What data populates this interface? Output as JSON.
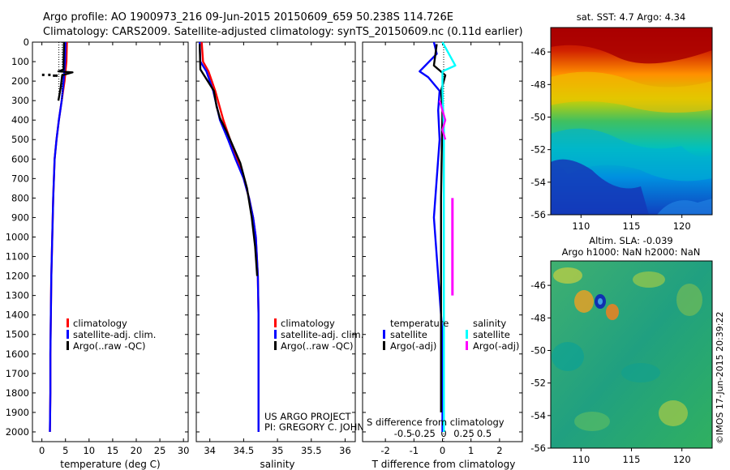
{
  "header": {
    "title_line1": "Argo profile: AO 1900973_216 09-Jun-2015 20150609_659 50.238S 114.726E",
    "title_line2": "Climatology: CARS2009. Satellite-adjusted climatology: synTS_20150609.nc (0.11d earlier)"
  },
  "colors": {
    "climatology": "#ff0000",
    "satellite_adj": "#0000ff",
    "argo": "#000000",
    "salinity_satellite": "#00ffff",
    "salinity_argo": "#ff00ff"
  },
  "credits": {
    "project": "US ARGO PROJECT",
    "pi": "PI: GREGORY C. JOHNSON",
    "imos_stamp": "©IMOS 17-Jun-2015 20:39:22"
  },
  "chart_data": [
    {
      "id": "temperature_profile",
      "type": "line",
      "xlabel": "temperature (deg C)",
      "ylabel": "",
      "xlim": [
        -2,
        31
      ],
      "ylim": [
        2050,
        0
      ],
      "y_ticks": [
        0,
        100,
        200,
        300,
        400,
        500,
        600,
        700,
        800,
        900,
        1000,
        1100,
        1200,
        1300,
        1400,
        1500,
        1600,
        1700,
        1800,
        1900,
        2000
      ],
      "x_ticks": [
        0,
        5,
        10,
        15,
        20,
        25,
        30
      ],
      "legend": [
        "climatology",
        "satellite-adj. clim.",
        "Argo(..raw -QC)"
      ],
      "series": [
        {
          "name": "climatology",
          "color": "#ff0000",
          "x": [
            5.3,
            5.2,
            4.8,
            4.2,
            3.6,
            3.1,
            2.7,
            2.4,
            2.2,
            2.0,
            1.9,
            1.8,
            1.8,
            1.7
          ],
          "y": [
            0,
            100,
            200,
            300,
            400,
            500,
            600,
            800,
            1000,
            1200,
            1400,
            1600,
            1800,
            2000
          ]
        },
        {
          "name": "satellite-adj. clim.",
          "color": "#0000ff",
          "x": [
            5.0,
            4.9,
            4.6,
            4.2,
            3.6,
            3.1,
            2.7,
            2.4,
            2.2,
            2.0,
            1.9,
            1.8,
            1.8,
            1.7
          ],
          "y": [
            0,
            100,
            200,
            300,
            400,
            500,
            600,
            800,
            1000,
            1200,
            1400,
            1600,
            1800,
            2000
          ]
        },
        {
          "name": "Argo(..raw -QC)",
          "color": "#000000",
          "x": [
            4.7,
            4.6,
            4.6,
            3.5,
            6.5,
            4.3,
            4.0,
            3.5
          ],
          "y": [
            0,
            100,
            140,
            150,
            155,
            170,
            230,
            300
          ]
        }
      ],
      "argo_qc_points": {
        "x": [
          0.2,
          1.5,
          2.5,
          3.0
        ],
        "y": [
          168,
          168,
          172,
          172
        ]
      }
    },
    {
      "id": "salinity_profile",
      "type": "line",
      "xlabel": "salinity",
      "xlim": [
        33.8,
        36.15
      ],
      "ylim": [
        2050,
        0
      ],
      "x_ticks": [
        34,
        34.5,
        35,
        35.5,
        36
      ],
      "legend": [
        "climatology",
        "satellite-adj. clim.",
        "Argo(..raw -QC)"
      ],
      "series": [
        {
          "name": "climatology",
          "color": "#ff0000",
          "x": [
            33.88,
            33.9,
            33.98,
            34.08,
            34.2,
            34.3,
            34.4,
            34.5,
            34.58,
            34.64,
            34.68,
            34.71,
            34.72,
            34.72,
            34.72
          ],
          "y": [
            0,
            100,
            150,
            250,
            400,
            500,
            600,
            700,
            800,
            900,
            1000,
            1200,
            1400,
            1600,
            2000
          ]
        },
        {
          "name": "satellite-adj. clim.",
          "color": "#0000ff",
          "x": [
            33.85,
            33.86,
            33.95,
            34.05,
            34.15,
            34.27,
            34.38,
            34.5,
            34.58,
            34.64,
            34.68,
            34.71,
            34.72,
            34.72,
            34.72
          ],
          "y": [
            0,
            100,
            150,
            250,
            400,
            500,
            600,
            700,
            800,
            900,
            1000,
            1200,
            1400,
            1600,
            2000
          ]
        },
        {
          "name": "Argo(..raw -QC)",
          "color": "#000000",
          "x": [
            33.85,
            33.86,
            34.06,
            34.1,
            34.15,
            34.25,
            34.35,
            34.45,
            34.55,
            34.62,
            34.67,
            34.7
          ],
          "y": [
            10,
            140,
            250,
            330,
            390,
            460,
            540,
            620,
            750,
            900,
            1050,
            1200
          ]
        }
      ]
    },
    {
      "id": "difference_profile",
      "type": "line",
      "xlabel": "T difference from climatology",
      "xlabel_top": "S difference from climatology",
      "xlim": [
        -2.8,
        2.8
      ],
      "ylim": [
        2050,
        0
      ],
      "x_ticks_T": [
        -2,
        -1,
        0,
        1,
        2
      ],
      "x_ticks_S": [
        -0.5,
        -0.25,
        0,
        0.25,
        0.5
      ],
      "legend_temperature": {
        "header": "temperature",
        "items": [
          "satellite",
          "Argo(-adj)"
        ]
      },
      "legend_salinity": {
        "header": "salinity",
        "items": [
          "satellite",
          "Argo(-adj)"
        ]
      },
      "series": [
        {
          "name": "temperature satellite",
          "color": "#0000ff",
          "x": [
            -0.3,
            -0.2,
            -0.6,
            -0.8,
            -0.5,
            -0.1,
            -0.15,
            -0.1,
            -0.2,
            -0.3,
            -0.2,
            -0.1,
            0.0,
            0.0
          ],
          "y": [
            0,
            60,
            120,
            150,
            180,
            250,
            350,
            500,
            700,
            900,
            1100,
            1300,
            1500,
            2000
          ]
        },
        {
          "name": "temperature Argo(-adj)",
          "color": "#000000",
          "x": [
            -0.2,
            -0.3,
            0.1,
            -0.05,
            0.0,
            -0.05,
            -0.05,
            -0.05,
            -0.05
          ],
          "y": [
            10,
            120,
            170,
            250,
            350,
            800,
            1200,
            1600,
            1900
          ]
        },
        {
          "name": "salinity satellite",
          "color": "#00ffff",
          "x": [
            0.0,
            0.45,
            0.0,
            0.0,
            0.05,
            0.05,
            0.05,
            0.05,
            0.05
          ],
          "y": [
            0,
            120,
            150,
            250,
            450,
            800,
            1200,
            1600,
            2000
          ]
        },
        {
          "name": "salinity Argo(-adj)",
          "color": "#ff00ff",
          "x": [
            -0.1,
            0.1,
            0.0,
            0.1
          ],
          "y": [
            300,
            400,
            450,
            500
          ],
          "extra_bar": {
            "x": 0.35,
            "y0": 800,
            "y1": 1300
          }
        }
      ]
    },
    {
      "id": "sst_map",
      "type": "heatmap",
      "title": "sat. SST: 4.7 Argo: 4.34",
      "x_ticks": [
        110,
        115,
        120
      ],
      "y_ticks": [
        -46,
        -48,
        -50,
        -52,
        -54,
        -56
      ],
      "xlim": [
        107,
        123
      ],
      "ylim": [
        -56,
        -44.5
      ]
    },
    {
      "id": "sla_map",
      "type": "heatmap",
      "title_line1": "Altim. SLA: -0.039",
      "title_line2": "Argo h1000: NaN h2000: NaN",
      "x_ticks": [
        110,
        115,
        120
      ],
      "y_ticks": [
        -46,
        -48,
        -50,
        -52,
        -54,
        -56
      ],
      "xlim": [
        107,
        123
      ],
      "ylim": [
        -56,
        -44.5
      ]
    }
  ]
}
